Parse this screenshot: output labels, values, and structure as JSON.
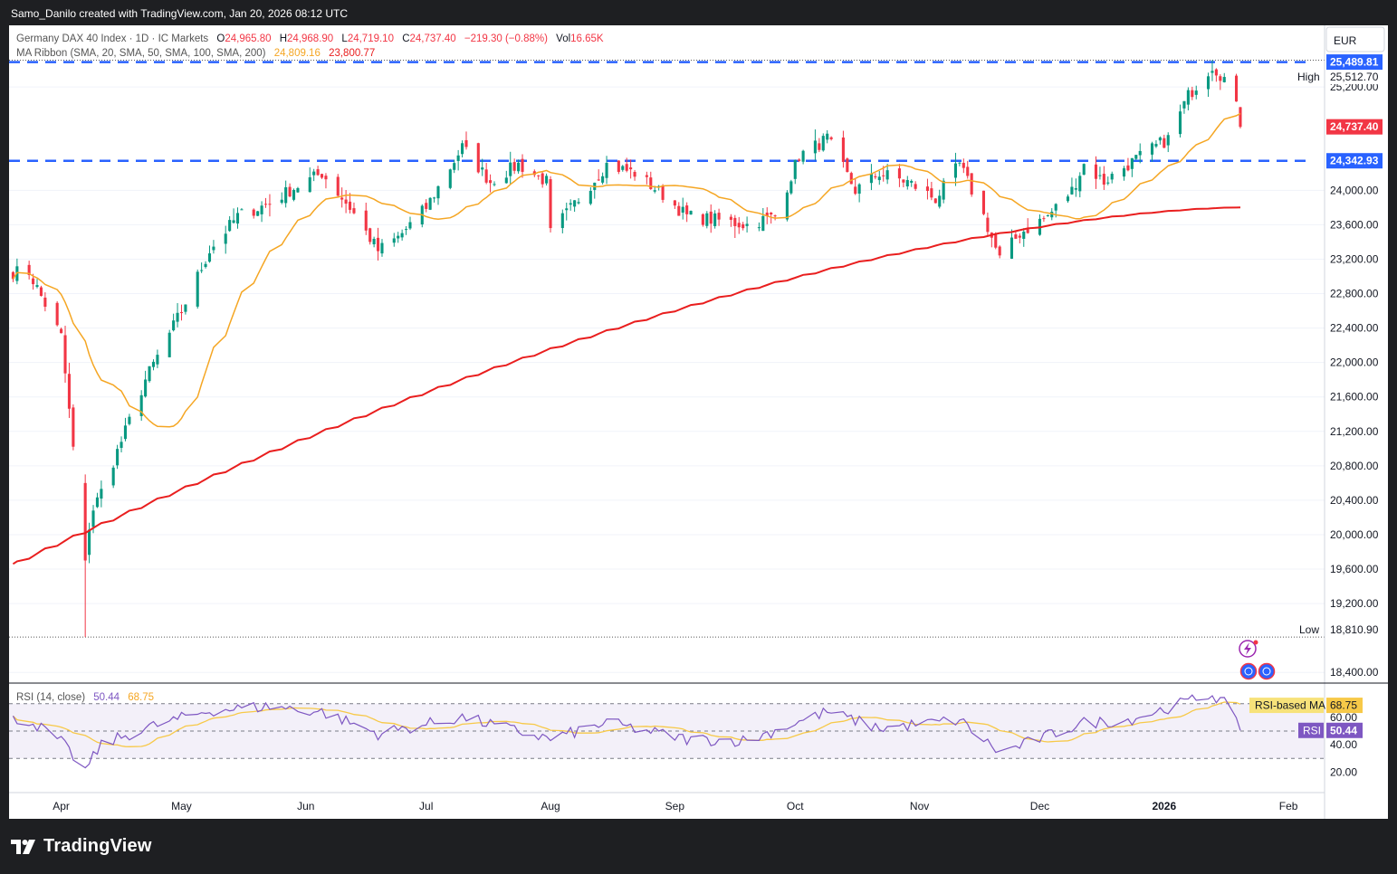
{
  "header": {
    "attribution": "Samo_Danilo created with TradingView.com, Jan 20, 2026 08:12 UTC",
    "symbol": "Germany DAX 40 Index · 1D · IC Markets",
    "ohlc": {
      "o_label": "O",
      "o": "24,965.80",
      "h_label": "H",
      "h": "24,968.90",
      "l_label": "L",
      "l": "24,719.10",
      "c_label": "C",
      "c": "24,737.40",
      "change": "−219.30 (−0.88%)",
      "vol_label": "Vol",
      "vol": "16.65K"
    },
    "ma_ribbon": {
      "label": "MA Ribbon (SMA, 20, SMA, 50, SMA, 100, SMA, 200)",
      "v1": "24,809.16",
      "v2": "23,800.77"
    },
    "currency": "EUR"
  },
  "price_axis": {
    "ticks": [
      "25,200.00",
      "24,000.00",
      "23,600.00",
      "23,200.00",
      "22,800.00",
      "22,400.00",
      "22,000.00",
      "21,600.00",
      "21,200.00",
      "20,800.00",
      "20,400.00",
      "20,000.00",
      "19,600.00",
      "19,200.00",
      "18,400.00"
    ],
    "high_label": "High",
    "high": "25,512.70",
    "low_label": "Low",
    "low": "18,810.90",
    "level_upper": "25,489.81",
    "level_lower": "24,342.93",
    "last_price": "24,737.40"
  },
  "rsi": {
    "label": "RSI (14, close)",
    "value": "50.44",
    "ma_value": "68.75",
    "ma_tag": "RSI-based MA",
    "rsi_tag": "RSI",
    "ticks": [
      "60.00",
      "40.00",
      "20.00"
    ]
  },
  "time_axis": [
    "Apr",
    "May",
    "Jun",
    "Jul",
    "Aug",
    "Sep",
    "Oct",
    "Nov",
    "Dec",
    "2026",
    "Feb"
  ],
  "brand": "TradingView",
  "colors": {
    "up": "#089981",
    "down": "#f23645",
    "ma20": "#f5a623",
    "ma200": "#e91e1e",
    "level": "#2962ff",
    "rsi": "#7e57c2",
    "rsi_ma": "#f7c948"
  },
  "chart_data": {
    "type": "candlestick",
    "title": "Germany DAX 40 Index · 1D · IC Markets",
    "ylim": [
      18400,
      25600
    ],
    "horizontal_levels": [
      25489.81,
      24342.93
    ],
    "anchors": [
      [
        "2025-03-24",
        23050
      ],
      [
        "2025-04-01",
        22300
      ],
      [
        "2025-04-07",
        19700
      ],
      [
        "2025-04-08",
        20100
      ],
      [
        "2025-04-09",
        20300
      ],
      [
        "2025-04-11",
        20500
      ],
      [
        "2025-04-17",
        21200
      ],
      [
        "2025-04-22",
        21800
      ],
      [
        "2025-05-01",
        22600
      ],
      [
        "2025-05-08",
        23300
      ],
      [
        "2025-05-15",
        23700
      ],
      [
        "2025-05-23",
        23850
      ],
      [
        "2025-05-28",
        24000
      ],
      [
        "2025-06-05",
        24200
      ],
      [
        "2025-06-12",
        23800
      ],
      [
        "2025-06-19",
        23300
      ],
      [
        "2025-06-24",
        23450
      ],
      [
        "2025-07-01",
        23800
      ],
      [
        "2025-07-10",
        24500
      ],
      [
        "2025-07-17",
        24100
      ],
      [
        "2025-07-24",
        24300
      ],
      [
        "2025-07-31",
        24100
      ],
      [
        "2025-08-01",
        23500
      ],
      [
        "2025-08-08",
        23900
      ],
      [
        "2025-08-15",
        24300
      ],
      [
        "2025-08-22",
        24200
      ],
      [
        "2025-08-29",
        23950
      ],
      [
        "2025-09-04",
        23700
      ],
      [
        "2025-09-12",
        23650
      ],
      [
        "2025-09-19",
        23600
      ],
      [
        "2025-09-26",
        23700
      ],
      [
        "2025-10-02",
        24400
      ],
      [
        "2025-10-09",
        24600
      ],
      [
        "2025-10-16",
        24000
      ],
      [
        "2025-10-22",
        24200
      ],
      [
        "2025-10-29",
        24100
      ],
      [
        "2025-11-05",
        23900
      ],
      [
        "2025-11-11",
        24300
      ],
      [
        "2025-11-17",
        23700
      ],
      [
        "2025-11-21",
        23200
      ],
      [
        "2025-11-26",
        23500
      ],
      [
        "2025-12-03",
        23700
      ],
      [
        "2025-12-09",
        24000
      ],
      [
        "2025-12-12",
        24300
      ],
      [
        "2025-12-17",
        24100
      ],
      [
        "2025-12-23",
        24300
      ],
      [
        "2026-01-02",
        24600
      ],
      [
        "2026-01-07",
        25100
      ],
      [
        "2026-01-13",
        25450
      ],
      [
        "2026-01-16",
        25300
      ],
      [
        "2026-01-19",
        24960
      ],
      [
        "2026-01-20",
        24737.4
      ]
    ],
    "sma20_end": 24809.16,
    "sma200_end": 23800.77,
    "rsi_anchors": [
      [
        "2025-03-24",
        58
      ],
      [
        "2025-04-01",
        42
      ],
      [
        "2025-04-07",
        21
      ],
      [
        "2025-04-11",
        40
      ],
      [
        "2025-04-22",
        52
      ],
      [
        "2025-05-08",
        65
      ],
      [
        "2025-05-23",
        68
      ],
      [
        "2025-06-05",
        64
      ],
      [
        "2025-06-19",
        48
      ],
      [
        "2025-07-10",
        60
      ],
      [
        "2025-08-01",
        44
      ],
      [
        "2025-08-15",
        56
      ],
      [
        "2025-09-04",
        44
      ],
      [
        "2025-09-19",
        43
      ],
      [
        "2025-10-09",
        64
      ],
      [
        "2025-10-22",
        52
      ],
      [
        "2025-11-11",
        58
      ],
      [
        "2025-11-21",
        34
      ],
      [
        "2025-12-12",
        56
      ],
      [
        "2025-12-23",
        58
      ],
      [
        "2026-01-13",
        77
      ],
      [
        "2026-01-16",
        70
      ],
      [
        "2026-01-20",
        50.44
      ]
    ],
    "rsi_ylim": [
      10,
      80
    ],
    "rsi_ma_end": 68.75
  }
}
